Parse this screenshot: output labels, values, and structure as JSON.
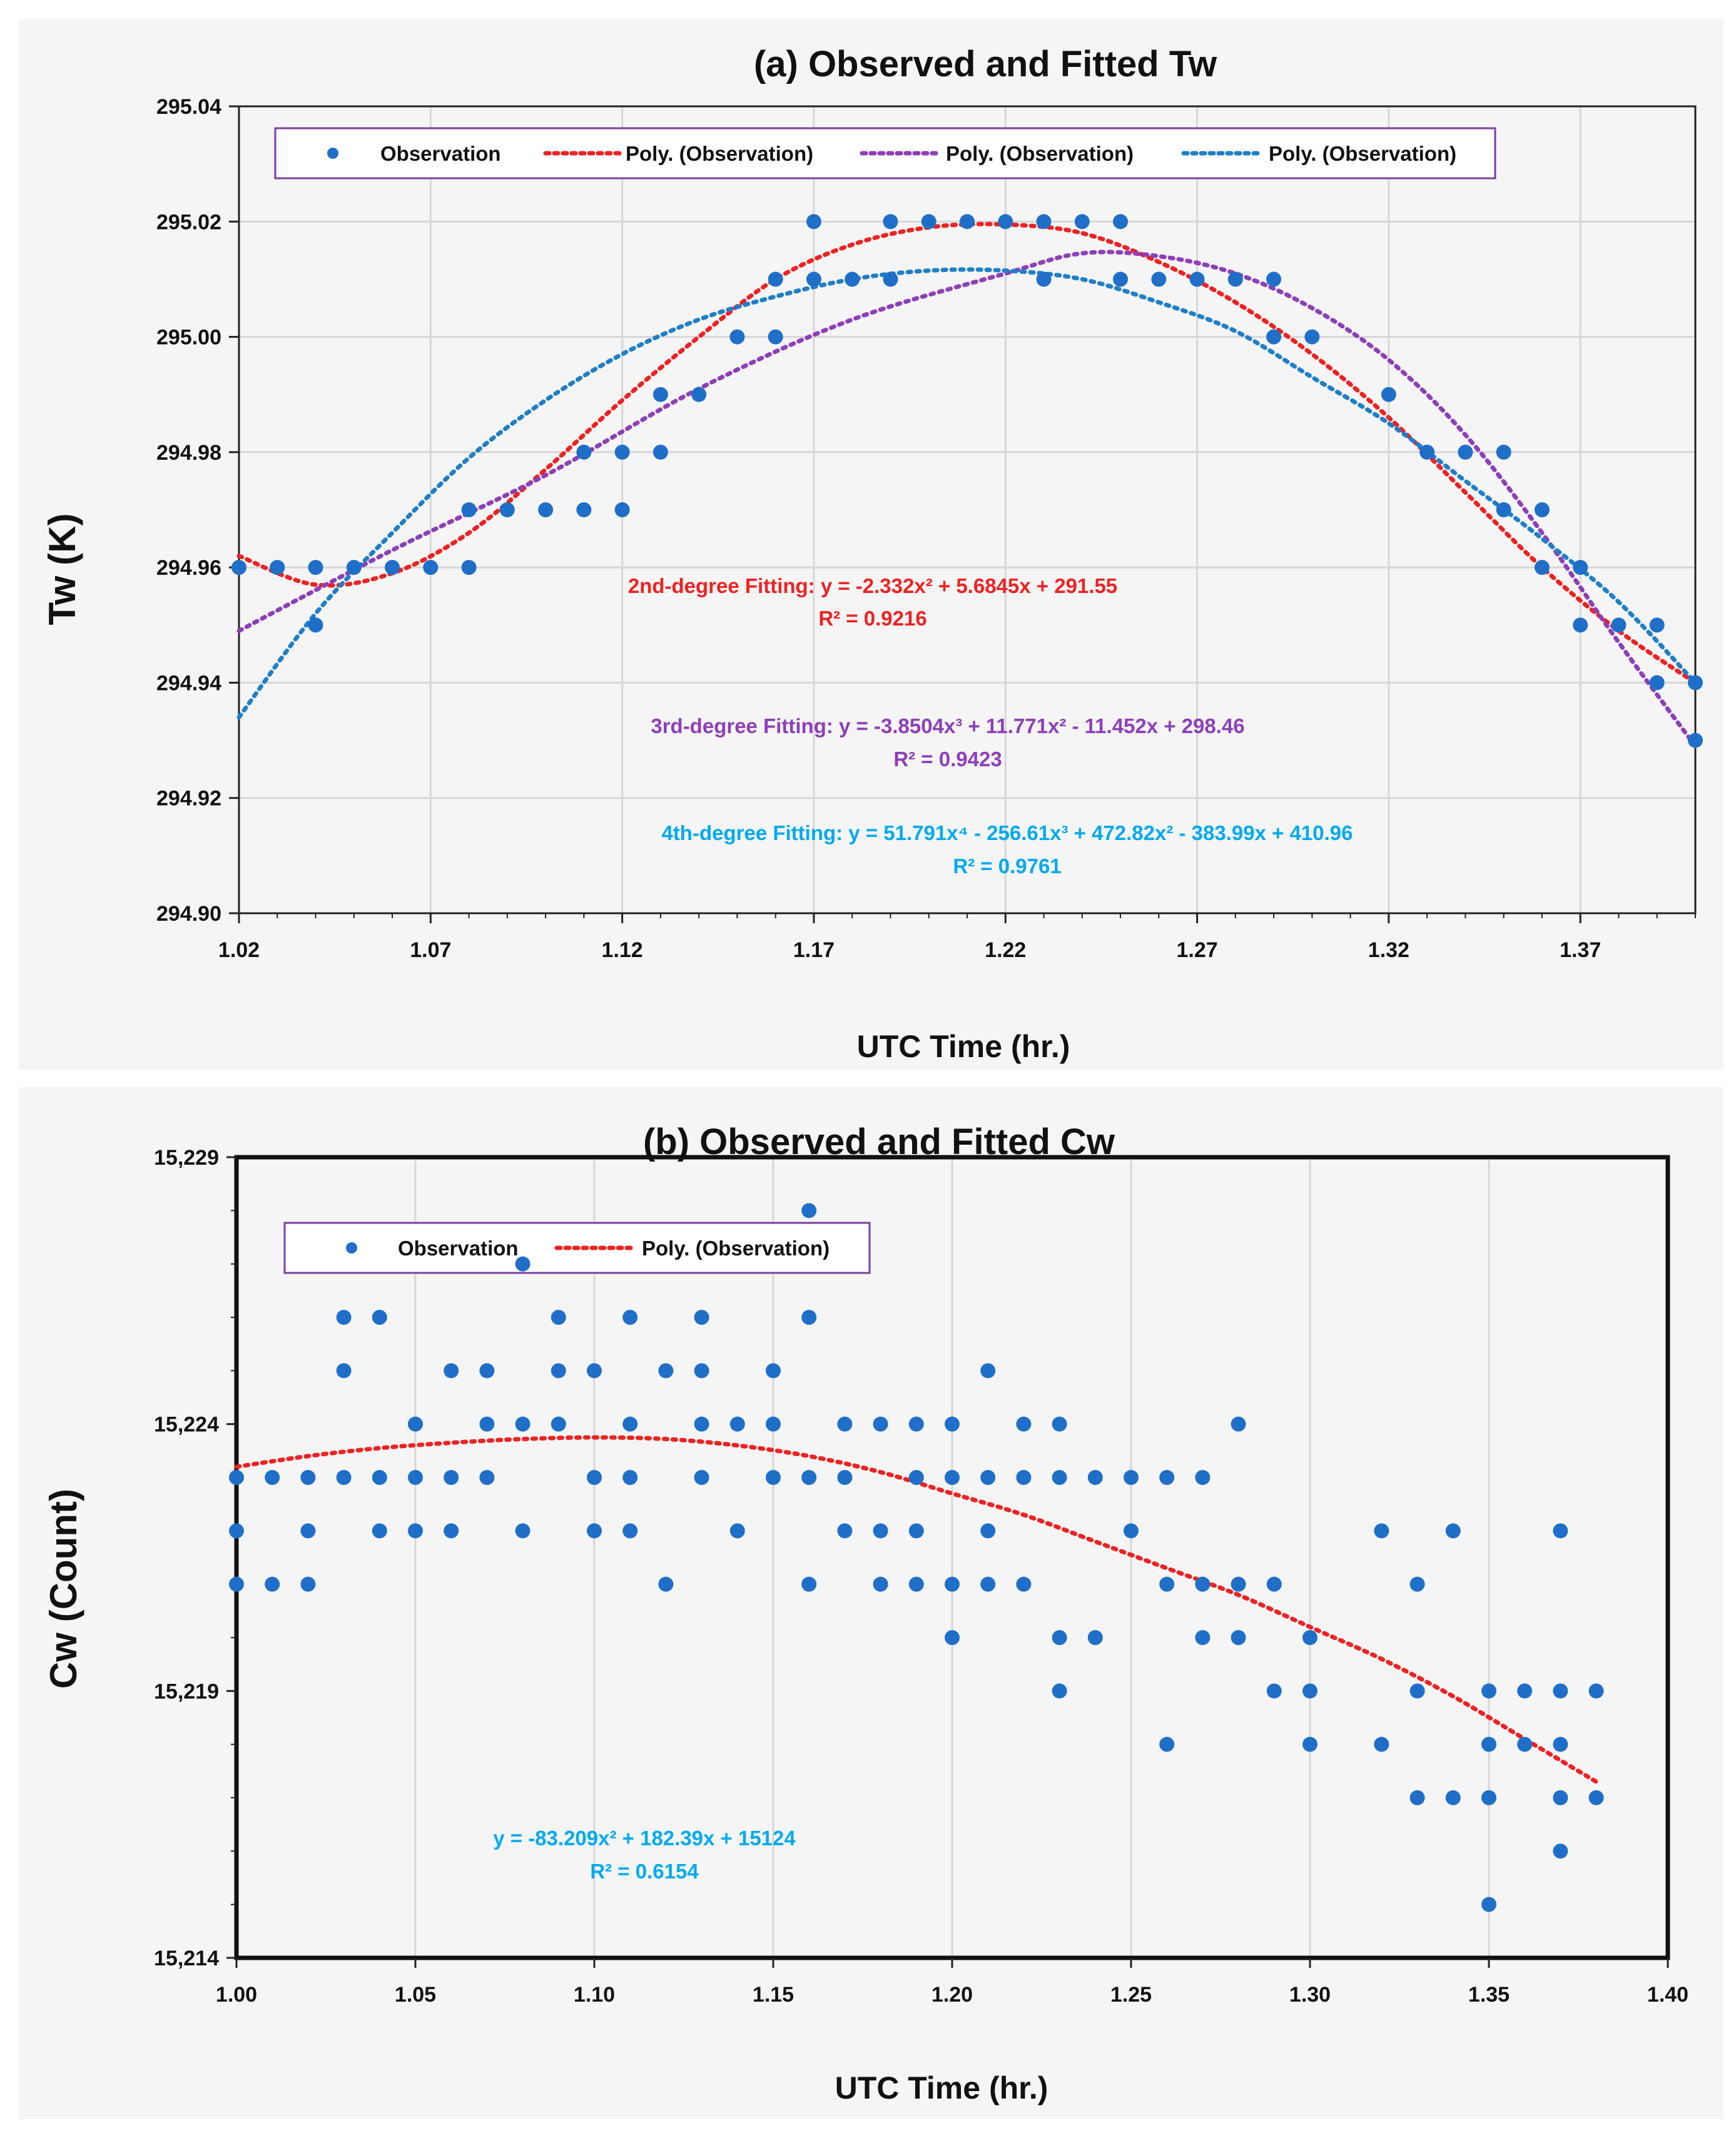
{
  "chart_data": [
    {
      "id": "a",
      "type": "scatter",
      "title": "(a) Observed  and Fitted Tw",
      "xlabel": "UTC Time (hr.)",
      "ylabel": "Tw (K)",
      "xlim": [
        1.02,
        1.4
      ],
      "ylim": [
        294.9,
        295.04
      ],
      "x_ticks": [
        1.02,
        1.07,
        1.12,
        1.17,
        1.22,
        1.27,
        1.32,
        1.37
      ],
      "x_tick_labels": [
        "1.02",
        "1.07",
        "1.12",
        "1.17",
        "1.22",
        "1.27",
        "1.32",
        "1.37"
      ],
      "y_ticks": [
        294.9,
        294.92,
        294.94,
        294.96,
        294.98,
        295.0,
        295.02,
        295.04
      ],
      "y_tick_labels": [
        "294.90",
        "294.92",
        "294.94",
        "294.96",
        "294.98",
        "295.00",
        "295.02",
        "295.04"
      ],
      "grid": true,
      "legend_position": "top-left",
      "legend": [
        "Observation",
        "Poly. (Observation)",
        "Poly. (Observation)",
        "Poly. (Observation)"
      ],
      "observations": [
        [
          1.02,
          294.96
        ],
        [
          1.03,
          294.96
        ],
        [
          1.04,
          294.96
        ],
        [
          1.04,
          294.95
        ],
        [
          1.05,
          294.96
        ],
        [
          1.06,
          294.96
        ],
        [
          1.07,
          294.96
        ],
        [
          1.08,
          294.96
        ],
        [
          1.08,
          294.97
        ],
        [
          1.09,
          294.97
        ],
        [
          1.1,
          294.97
        ],
        [
          1.11,
          294.97
        ],
        [
          1.11,
          294.98
        ],
        [
          1.12,
          294.97
        ],
        [
          1.12,
          294.98
        ],
        [
          1.13,
          294.98
        ],
        [
          1.13,
          294.99
        ],
        [
          1.14,
          294.99
        ],
        [
          1.15,
          295.0
        ],
        [
          1.16,
          295.0
        ],
        [
          1.16,
          295.01
        ],
        [
          1.17,
          295.01
        ],
        [
          1.17,
          295.02
        ],
        [
          1.18,
          295.01
        ],
        [
          1.19,
          295.02
        ],
        [
          1.19,
          295.01
        ],
        [
          1.2,
          295.02
        ],
        [
          1.21,
          295.02
        ],
        [
          1.22,
          295.02
        ],
        [
          1.23,
          295.02
        ],
        [
          1.23,
          295.01
        ],
        [
          1.24,
          295.02
        ],
        [
          1.25,
          295.02
        ],
        [
          1.25,
          295.01
        ],
        [
          1.26,
          295.01
        ],
        [
          1.27,
          295.01
        ],
        [
          1.28,
          295.01
        ],
        [
          1.29,
          295.01
        ],
        [
          1.29,
          295.0
        ],
        [
          1.3,
          295.0
        ],
        [
          1.32,
          294.99
        ],
        [
          1.33,
          294.98
        ],
        [
          1.34,
          294.98
        ],
        [
          1.35,
          294.98
        ],
        [
          1.35,
          294.97
        ],
        [
          1.36,
          294.97
        ],
        [
          1.36,
          294.96
        ],
        [
          1.37,
          294.96
        ],
        [
          1.37,
          294.95
        ],
        [
          1.38,
          294.95
        ],
        [
          1.39,
          294.95
        ],
        [
          1.39,
          294.94
        ],
        [
          1.4,
          294.94
        ],
        [
          1.4,
          294.93
        ]
      ],
      "fits": [
        {
          "name": "Poly. (Observation)",
          "degree": 2,
          "color": "#ee2222",
          "points": [
            [
              1.02,
              294.962
            ],
            [
              1.04,
              294.957
            ],
            [
              1.06,
              294.959
            ],
            [
              1.08,
              294.966
            ],
            [
              1.1,
              294.977
            ],
            [
              1.12,
              294.989
            ],
            [
              1.14,
              295.0
            ],
            [
              1.16,
              295.01
            ],
            [
              1.18,
              295.016
            ],
            [
              1.2,
              295.019
            ],
            [
              1.22,
              295.0195
            ],
            [
              1.24,
              295.018
            ],
            [
              1.26,
              295.013
            ],
            [
              1.28,
              295.006
            ],
            [
              1.3,
              294.997
            ],
            [
              1.32,
              294.986
            ],
            [
              1.34,
              294.973
            ],
            [
              1.36,
              294.96
            ],
            [
              1.38,
              294.949
            ],
            [
              1.4,
              294.94
            ]
          ]
        },
        {
          "name": "Poly. (Observation)",
          "degree": 3,
          "color": "#8e3fb8",
          "points": [
            [
              1.02,
              294.949
            ],
            [
              1.06,
              294.963
            ],
            [
              1.1,
              294.976
            ],
            [
              1.14,
              294.991
            ],
            [
              1.18,
              295.003
            ],
            [
              1.22,
              295.011
            ],
            [
              1.24,
              295.0145
            ],
            [
              1.26,
              295.014
            ],
            [
              1.28,
              295.011
            ],
            [
              1.3,
              295.005
            ],
            [
              1.32,
              294.996
            ],
            [
              1.34,
              294.983
            ],
            [
              1.36,
              294.966
            ],
            [
              1.38,
              294.947
            ],
            [
              1.4,
              294.929
            ]
          ]
        },
        {
          "name": "Poly. (Observation)",
          "degree": 4,
          "color": "#1f7fc8",
          "points": [
            [
              1.02,
              294.934
            ],
            [
              1.04,
              294.952
            ],
            [
              1.06,
              294.966
            ],
            [
              1.08,
              294.979
            ],
            [
              1.1,
              294.989
            ],
            [
              1.12,
              294.997
            ],
            [
              1.14,
              295.003
            ],
            [
              1.16,
              295.007
            ],
            [
              1.18,
              295.01
            ],
            [
              1.2,
              295.0115
            ],
            [
              1.22,
              295.0115
            ],
            [
              1.24,
              295.01
            ],
            [
              1.26,
              295.006
            ],
            [
              1.28,
              295.001
            ],
            [
              1.3,
              294.993
            ],
            [
              1.32,
              294.985
            ],
            [
              1.34,
              294.975
            ],
            [
              1.36,
              294.965
            ],
            [
              1.38,
              294.954
            ],
            [
              1.4,
              294.94
            ]
          ]
        }
      ],
      "annotations": [
        {
          "lines": [
            "2nd-degree Fitting: y = -2.332x² + 5.6845x + 291.55",
            "R² = 0.9216"
          ],
          "color": "#ee2222"
        },
        {
          "lines": [
            "3rd-degree Fitting: y = -3.8504x³ + 11.771x² - 11.452x + 298.46",
            "R² = 0.9423"
          ],
          "color": "#8e3fb8"
        },
        {
          "lines": [
            "4th-degree Fitting: y = 51.791x⁴ - 256.61x³ + 472.82x² - 383.99x + 410.96",
            "R² = 0.9761"
          ],
          "color": "#00aaee"
        }
      ]
    },
    {
      "id": "b",
      "type": "scatter",
      "title": "(b) Observed  and Fitted Cw",
      "xlabel": "UTC Time (hr.)",
      "ylabel": "Cw (Count)",
      "xlim": [
        1.0,
        1.4
      ],
      "ylim": [
        15214,
        15229
      ],
      "x_ticks": [
        1.0,
        1.05,
        1.1,
        1.15,
        1.2,
        1.25,
        1.3,
        1.35,
        1.4
      ],
      "x_tick_labels": [
        "1.00",
        "1.05",
        "1.10",
        "1.15",
        "1.20",
        "1.25",
        "1.30",
        "1.35",
        "1.40"
      ],
      "y_ticks": [
        15214,
        15219,
        15224,
        15229
      ],
      "y_tick_labels": [
        "15,214",
        "15,219",
        "15,224",
        "15,229"
      ],
      "y_minor_step": 1,
      "grid": true,
      "legend_position": "top-left",
      "legend": [
        "Observation",
        "Poly. (Observation)"
      ],
      "observations": [
        [
          1.0,
          15223
        ],
        [
          1.0,
          15222
        ],
        [
          1.0,
          15221
        ],
        [
          1.01,
          15223
        ],
        [
          1.01,
          15221
        ],
        [
          1.02,
          15223
        ],
        [
          1.02,
          15222
        ],
        [
          1.02,
          15221
        ],
        [
          1.03,
          15226
        ],
        [
          1.03,
          15225
        ],
        [
          1.03,
          15223
        ],
        [
          1.04,
          15226
        ],
        [
          1.04,
          15223
        ],
        [
          1.04,
          15222
        ],
        [
          1.05,
          15224
        ],
        [
          1.05,
          15223
        ],
        [
          1.05,
          15222
        ],
        [
          1.06,
          15225
        ],
        [
          1.06,
          15223
        ],
        [
          1.06,
          15222
        ],
        [
          1.07,
          15225
        ],
        [
          1.07,
          15224
        ],
        [
          1.07,
          15223
        ],
        [
          1.08,
          15227
        ],
        [
          1.08,
          15224
        ],
        [
          1.08,
          15222
        ],
        [
          1.09,
          15226
        ],
        [
          1.09,
          15225
        ],
        [
          1.09,
          15224
        ],
        [
          1.1,
          15225
        ],
        [
          1.1,
          15223
        ],
        [
          1.1,
          15222
        ],
        [
          1.11,
          15226
        ],
        [
          1.11,
          15224
        ],
        [
          1.11,
          15223
        ],
        [
          1.11,
          15222
        ],
        [
          1.12,
          15225
        ],
        [
          1.12,
          15221
        ],
        [
          1.13,
          15226
        ],
        [
          1.13,
          15225
        ],
        [
          1.13,
          15224
        ],
        [
          1.13,
          15223
        ],
        [
          1.14,
          15224
        ],
        [
          1.14,
          15222
        ],
        [
          1.15,
          15225
        ],
        [
          1.15,
          15224
        ],
        [
          1.15,
          15223
        ],
        [
          1.16,
          15228
        ],
        [
          1.16,
          15226
        ],
        [
          1.16,
          15223
        ],
        [
          1.16,
          15221
        ],
        [
          1.17,
          15224
        ],
        [
          1.17,
          15223
        ],
        [
          1.17,
          15222
        ],
        [
          1.18,
          15224
        ],
        [
          1.18,
          15222
        ],
        [
          1.18,
          15221
        ],
        [
          1.19,
          15224
        ],
        [
          1.19,
          15223
        ],
        [
          1.19,
          15222
        ],
        [
          1.19,
          15221
        ],
        [
          1.2,
          15224
        ],
        [
          1.2,
          15223
        ],
        [
          1.2,
          15221
        ],
        [
          1.2,
          15220
        ],
        [
          1.21,
          15225
        ],
        [
          1.21,
          15223
        ],
        [
          1.21,
          15222
        ],
        [
          1.21,
          15221
        ],
        [
          1.22,
          15224
        ],
        [
          1.22,
          15223
        ],
        [
          1.22,
          15221
        ],
        [
          1.23,
          15224
        ],
        [
          1.23,
          15223
        ],
        [
          1.23,
          15220
        ],
        [
          1.23,
          15219
        ],
        [
          1.24,
          15223
        ],
        [
          1.24,
          15220
        ],
        [
          1.25,
          15223
        ],
        [
          1.25,
          15222
        ],
        [
          1.26,
          15223
        ],
        [
          1.26,
          15221
        ],
        [
          1.26,
          15218
        ],
        [
          1.27,
          15223
        ],
        [
          1.27,
          15221
        ],
        [
          1.27,
          15220
        ],
        [
          1.28,
          15224
        ],
        [
          1.28,
          15221
        ],
        [
          1.28,
          15220
        ],
        [
          1.29,
          15221
        ],
        [
          1.29,
          15219
        ],
        [
          1.3,
          15220
        ],
        [
          1.3,
          15219
        ],
        [
          1.3,
          15218
        ],
        [
          1.32,
          15222
        ],
        [
          1.32,
          15218
        ],
        [
          1.33,
          15221
        ],
        [
          1.33,
          15219
        ],
        [
          1.33,
          15217
        ],
        [
          1.34,
          15222
        ],
        [
          1.34,
          15217
        ],
        [
          1.35,
          15219
        ],
        [
          1.35,
          15218
        ],
        [
          1.35,
          15217
        ],
        [
          1.35,
          15215
        ],
        [
          1.36,
          15219
        ],
        [
          1.36,
          15218
        ],
        [
          1.37,
          15222
        ],
        [
          1.37,
          15219
        ],
        [
          1.37,
          15218
        ],
        [
          1.37,
          15217
        ],
        [
          1.37,
          15216
        ],
        [
          1.38,
          15219
        ],
        [
          1.38,
          15217
        ]
      ],
      "fits": [
        {
          "name": "Poly. (Observation)",
          "degree": 2,
          "color": "#ee2222",
          "points": [
            [
              1.0,
              15223.2
            ],
            [
              1.02,
              15223.4
            ],
            [
              1.04,
              15223.55
            ],
            [
              1.06,
              15223.65
            ],
            [
              1.08,
              15223.72
            ],
            [
              1.1,
              15223.75
            ],
            [
              1.12,
              15223.72
            ],
            [
              1.14,
              15223.6
            ],
            [
              1.16,
              15223.4
            ],
            [
              1.18,
              15223.1
            ],
            [
              1.2,
              15222.7
            ],
            [
              1.22,
              15222.3
            ],
            [
              1.24,
              15221.8
            ],
            [
              1.26,
              15221.3
            ],
            [
              1.28,
              15220.8
            ],
            [
              1.3,
              15220.2
            ],
            [
              1.32,
              15219.6
            ],
            [
              1.34,
              15218.9
            ],
            [
              1.36,
              15218.1
            ],
            [
              1.38,
              15217.3
            ]
          ]
        }
      ],
      "annotations": [
        {
          "lines": [
            "y = -83.209x² + 182.39x + 15124",
            "R² = 0.6154"
          ],
          "color": "#00aaee"
        }
      ]
    }
  ]
}
